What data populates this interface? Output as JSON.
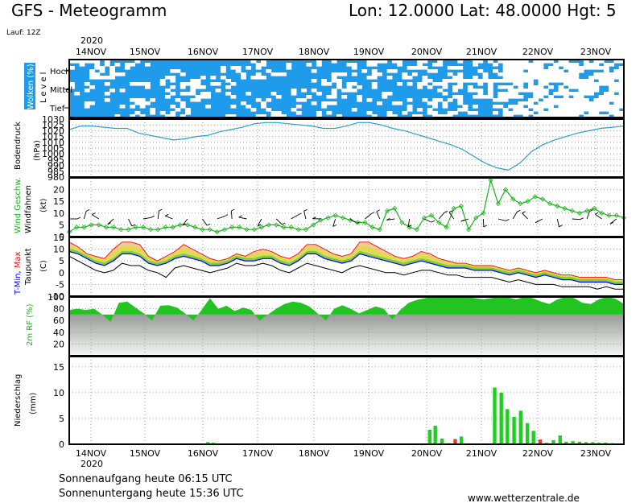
{
  "header": {
    "title": "GFS - Meteogramm",
    "location": "Lon: 12.0000 Lat: 48.0000 Hgt: 5",
    "run": "Lauf: 12Z"
  },
  "footer": {
    "sunrise": "Sonnenaufgang heute 06:15 UTC",
    "sunset": "Sonnenuntergang heute 15:36 UTC",
    "website": "www.wetterzentrale.de"
  },
  "colors": {
    "cloud_blue": "#1e9bea",
    "pressure_line": "#2aa0c8",
    "wind_green": "#19b419",
    "tmin": "#0000ff",
    "tmax": "#ff0000",
    "rf_green": "#22c422",
    "precip_green": "#22cc22",
    "precip_red": "#e03a2a"
  },
  "chart_data": {
    "type": "line",
    "year": "2020",
    "dates": [
      "14NOV",
      "15NOV",
      "16NOV",
      "17NOV",
      "18NOV",
      "19NOV",
      "20NOV",
      "21NOV",
      "22NOV",
      "23NOV"
    ],
    "panels": {
      "clouds": {
        "label": "Wolken (%)",
        "level_label": "Level",
        "levels": [
          "Hoch",
          "Mittel",
          "Tief"
        ]
      },
      "pressure": {
        "label": "Bodendruck",
        "unit": "(hPa)",
        "ticks": [
          1030,
          1025,
          1020,
          1015,
          1010,
          1005,
          1000,
          995,
          990,
          985,
          980
        ],
        "ylim": [
          980,
          1030
        ],
        "values": [
          1021,
          1024,
          1024,
          1023,
          1022,
          1022,
          1018,
          1016,
          1014,
          1012,
          1013,
          1015,
          1016,
          1019,
          1021,
          1023,
          1026,
          1027,
          1027,
          1026,
          1025,
          1024,
          1022,
          1022,
          1024,
          1027,
          1027,
          1025,
          1022,
          1020,
          1017,
          1014,
          1011,
          1008,
          1004,
          998,
          992,
          988,
          986,
          992,
          1002,
          1008,
          1012,
          1015,
          1018,
          1020,
          1022,
          1023,
          1024
        ]
      },
      "wind": {
        "label": "Wind Geschw.",
        "sub_label": "Windfahnen",
        "unit": "(kt)",
        "ticks": [
          20,
          15,
          10,
          5,
          0
        ],
        "ylim": [
          0,
          25
        ],
        "values": [
          2,
          4,
          4,
          5,
          5,
          4,
          4,
          3,
          3,
          4,
          4,
          3,
          3,
          4,
          4,
          5,
          5,
          4,
          3,
          3,
          2,
          3,
          4,
          4,
          3,
          3,
          4,
          5,
          5,
          4,
          4,
          3,
          3,
          5,
          7,
          8,
          9,
          8,
          7,
          6,
          6,
          4,
          3,
          11,
          12,
          6,
          4,
          3,
          8,
          9,
          6,
          4,
          12,
          13,
          3,
          8,
          10,
          24,
          14,
          20,
          16,
          14,
          15,
          17,
          16,
          14,
          13,
          12,
          11,
          10,
          11,
          12,
          10,
          9,
          9,
          8
        ]
      },
      "temperature": {
        "label_tmin": "T-Min,",
        "label_tmax": "Max",
        "sub_label": "Taupunkt",
        "unit": "(C)",
        "ticks": [
          15,
          10,
          5,
          0,
          -5,
          -10
        ],
        "ylim": [
          -10,
          15
        ],
        "tmax": [
          13,
          11,
          8,
          7,
          6,
          10,
          13,
          13,
          12,
          7,
          5,
          7,
          9,
          12,
          10,
          8,
          6,
          5,
          6,
          8,
          7,
          9,
          10,
          9,
          7,
          6,
          8,
          12,
          12,
          10,
          8,
          7,
          8,
          13,
          13,
          11,
          9,
          7,
          6,
          7,
          9,
          8,
          6,
          5,
          4,
          4,
          3,
          3,
          3,
          2,
          1,
          2,
          1,
          0,
          1,
          0,
          -1,
          -1,
          -2,
          -2,
          -2,
          -2,
          -3,
          -3
        ],
        "tmin": [
          9,
          8,
          6,
          4,
          3,
          5,
          8,
          8,
          7,
          4,
          3,
          4,
          6,
          7,
          6,
          5,
          3,
          3,
          4,
          6,
          5,
          5,
          6,
          6,
          4,
          3,
          5,
          8,
          8,
          6,
          5,
          4,
          5,
          8,
          7,
          6,
          5,
          4,
          3,
          4,
          5,
          4,
          3,
          2,
          2,
          2,
          1,
          1,
          1,
          0,
          -1,
          0,
          -1,
          -2,
          -1,
          -2,
          -3,
          -3,
          -4,
          -4,
          -4,
          -4,
          -5,
          -5
        ],
        "dew": [
          7,
          5,
          3,
          1,
          0,
          1,
          4,
          3,
          3,
          1,
          0,
          -2,
          2,
          3,
          2,
          1,
          0,
          1,
          2,
          4,
          3,
          3,
          4,
          3,
          1,
          0,
          2,
          4,
          3,
          2,
          1,
          0,
          2,
          3,
          2,
          1,
          0,
          0,
          -1,
          0,
          1,
          1,
          0,
          -1,
          -1,
          -2,
          -2,
          -2,
          -2,
          -3,
          -4,
          -3,
          -4,
          -5,
          -5,
          -5,
          -6,
          -6,
          -6,
          -6,
          -7,
          -6,
          -7,
          -7
        ]
      },
      "humidity": {
        "label": "2m RF (%)",
        "ticks": [
          100,
          80,
          60,
          40,
          20
        ],
        "ylim": [
          0,
          100
        ],
        "values": [
          78,
          80,
          78,
          80,
          70,
          58,
          90,
          92,
          82,
          72,
          60,
          85,
          86,
          82,
          72,
          60,
          78,
          98,
          80,
          85,
          76,
          82,
          78,
          60,
          70,
          80,
          88,
          92,
          90,
          84,
          72,
          60,
          80,
          86,
          80,
          72,
          78,
          84,
          80,
          62,
          78,
          90,
          95,
          98,
          100,
          100,
          100,
          100,
          100,
          98,
          96,
          98,
          100,
          99,
          96,
          100,
          98,
          92,
          88,
          96,
          100,
          98,
          90,
          88,
          96,
          100,
          97,
          88
        ]
      },
      "precip": {
        "label": "Niederschlag",
        "unit": "(mm)",
        "ticks": [
          15,
          10,
          5,
          0
        ],
        "ylim": [
          0,
          17
        ],
        "bars": [
          {
            "t": 0.25,
            "v": 0.4,
            "c": "g"
          },
          {
            "t": 0.26,
            "v": 0.3,
            "c": "g"
          },
          {
            "t": 0.65,
            "v": 2.8,
            "c": "g"
          },
          {
            "t": 0.66,
            "v": 3.6,
            "c": "g"
          },
          {
            "t": 0.672,
            "v": 1.1,
            "c": "g"
          },
          {
            "t": 0.685,
            "v": 0.2,
            "c": "g"
          },
          {
            "t": 0.696,
            "v": 1.0,
            "c": "r"
          },
          {
            "t": 0.707,
            "v": 1.5,
            "c": "g"
          },
          {
            "t": 0.767,
            "v": 11.0,
            "c": "g"
          },
          {
            "t": 0.779,
            "v": 10.0,
            "c": "g"
          },
          {
            "t": 0.79,
            "v": 6.8,
            "c": "g"
          },
          {
            "t": 0.802,
            "v": 5.3,
            "c": "g"
          },
          {
            "t": 0.814,
            "v": 6.5,
            "c": "g"
          },
          {
            "t": 0.826,
            "v": 4.1,
            "c": "g"
          },
          {
            "t": 0.837,
            "v": 2.6,
            "c": "g"
          },
          {
            "t": 0.849,
            "v": 0.9,
            "c": "r"
          },
          {
            "t": 0.861,
            "v": 0.3,
            "c": "g"
          },
          {
            "t": 0.873,
            "v": 0.8,
            "c": "g"
          },
          {
            "t": 0.885,
            "v": 1.7,
            "c": "g"
          },
          {
            "t": 0.896,
            "v": 0.5,
            "c": "g"
          },
          {
            "t": 0.908,
            "v": 0.6,
            "c": "g"
          },
          {
            "t": 0.92,
            "v": 0.5,
            "c": "g"
          },
          {
            "t": 0.932,
            "v": 0.4,
            "c": "g"
          },
          {
            "t": 0.944,
            "v": 0.4,
            "c": "g"
          },
          {
            "t": 0.955,
            "v": 0.3,
            "c": "g"
          },
          {
            "t": 0.967,
            "v": 0.3,
            "c": "g"
          },
          {
            "t": 0.979,
            "v": 0.2,
            "c": "g"
          }
        ]
      }
    }
  }
}
